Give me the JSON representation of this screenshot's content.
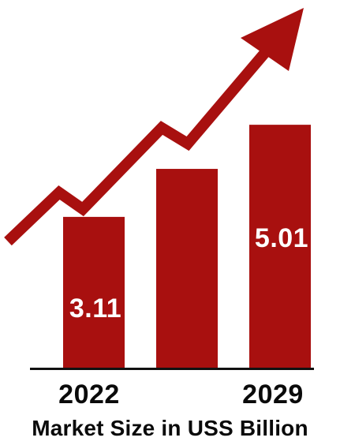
{
  "colors": {
    "bar": "#a8100f",
    "arrow": "#a8100f",
    "baseline": "#111111",
    "value_label": "#ffffff",
    "text": "#0a0a0a"
  },
  "chart_data": {
    "type": "bar",
    "categories": [
      "2022",
      "",
      "2029"
    ],
    "values": [
      3.11,
      4.1,
      5.01
    ],
    "value_labels": [
      "3.11",
      "",
      "5.01"
    ],
    "tick_labels": [
      "2022",
      "",
      "2029"
    ],
    "xlabel": "Market Size in USS Billion",
    "ylabel": "",
    "ylim": [
      0,
      5.37
    ],
    "grid": false,
    "legend": "none",
    "trend_arrow": true
  }
}
